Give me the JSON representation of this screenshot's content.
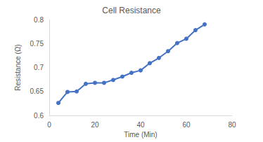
{
  "chart_data": {
    "type": "line",
    "title": "Cell Resistance",
    "x_label": "Time (Min)",
    "y_label": "Resistance (Ω)",
    "series": [
      {
        "name": "Resistance",
        "color": "#4472c4",
        "marker": "circle",
        "line_style": "solid",
        "x": [
          4,
          8,
          12,
          16,
          20,
          24,
          28,
          32,
          36,
          40,
          44,
          48,
          52,
          56,
          60,
          64,
          68
        ],
        "values": [
          0.626,
          0.649,
          0.65,
          0.666,
          0.668,
          0.668,
          0.674,
          0.681,
          0.689,
          0.694,
          0.709,
          0.72,
          0.734,
          0.751,
          0.76,
          0.778,
          0.79
        ]
      }
    ],
    "xlim": [
      0,
      80
    ],
    "xticks": [
      0,
      20,
      40,
      60,
      80
    ],
    "ylim": [
      0.6,
      0.8
    ],
    "yticks": [
      0.6,
      0.65,
      0.7,
      0.75,
      0.8
    ],
    "grid": false
  }
}
